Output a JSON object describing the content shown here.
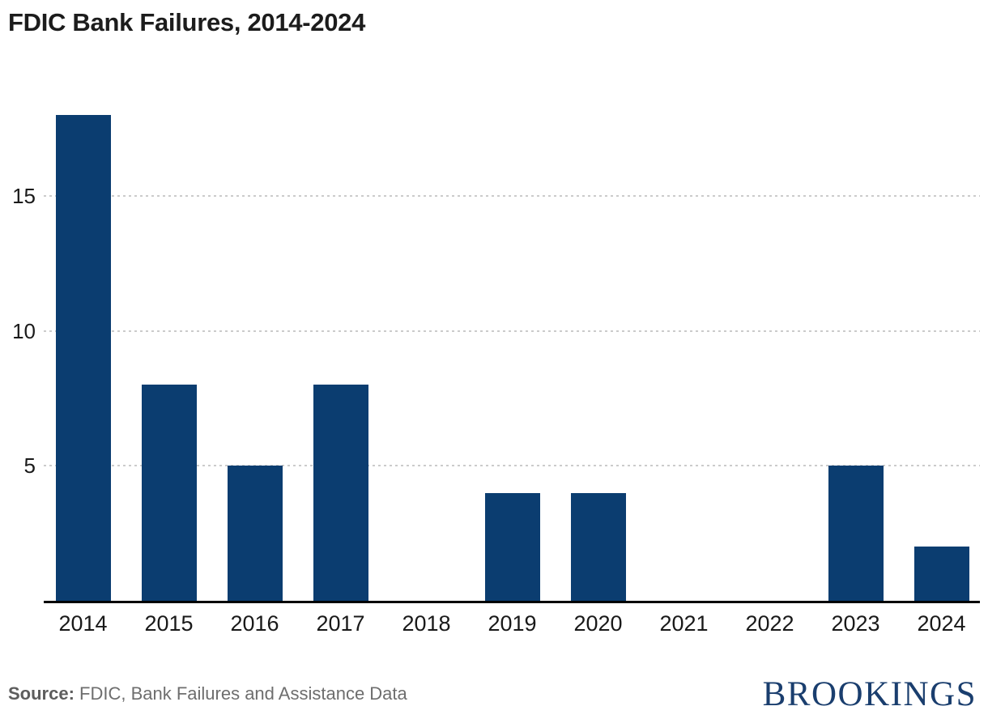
{
  "title": "FDIC Bank Failures, 2014-2024",
  "source": {
    "label": "Source:",
    "text": " FDIC, Bank Failures and Assistance Data"
  },
  "logo_text": "BROOKINGS",
  "colors": {
    "bar": "#0b3d70",
    "axis": "#000000",
    "grid": "#cbcbcb",
    "logo": "#1a3e6e"
  },
  "chart_data": {
    "type": "bar",
    "categories": [
      "2014",
      "2015",
      "2016",
      "2017",
      "2018",
      "2019",
      "2020",
      "2021",
      "2022",
      "2023",
      "2024"
    ],
    "values": [
      18,
      8,
      5,
      8,
      0,
      4,
      4,
      0,
      0,
      5,
      2
    ],
    "title": "FDIC Bank Failures, 2014-2024",
    "xlabel": "",
    "ylabel": "",
    "ylim": [
      0,
      18
    ],
    "yticks": [
      5,
      10,
      15
    ],
    "grid": "horizontal-dotted",
    "legend": "none",
    "bar_color": "#0b3d70"
  }
}
